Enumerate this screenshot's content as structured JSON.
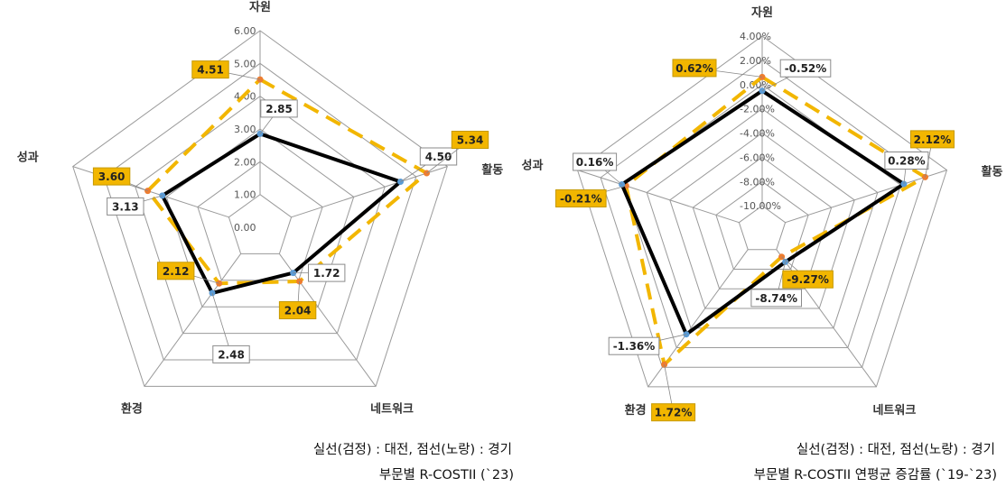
{
  "captions": {
    "left_legend": "실선(검정) : 대전, 점선(노랑) : 경기",
    "left_title": "부문별 R-COSTII (`23)",
    "right_legend": "실선(검정) : 대전, 점선(노랑) : 경기",
    "right_title": "부문별 R-COSTII 연평균 증감률 (`19-`23)"
  },
  "colors": {
    "solid": "#000000",
    "dashed": "#f2b600",
    "label_fill": "#f2b600",
    "grid": "#9a9a9a",
    "blue_marker": "#5b9bd5",
    "orange_marker": "#ed7d31"
  },
  "chart_data": [
    {
      "type": "radar",
      "axes": [
        "자원",
        "활동",
        "네트워크",
        "환경",
        "성과"
      ],
      "rmin": 0,
      "rmax": 6,
      "tick_step": 1,
      "ticks": [
        "0.00",
        "1.00",
        "2.00",
        "3.00",
        "4.00",
        "5.00",
        "6.00"
      ],
      "series": [
        {
          "style": "solid",
          "values": [
            2.85,
            4.5,
            1.72,
            2.48,
            3.13
          ],
          "labels": [
            "2.85",
            "4.50",
            "1.72",
            "2.48",
            "3.13"
          ]
        },
        {
          "style": "dashed",
          "values": [
            4.51,
            5.34,
            2.04,
            2.12,
            3.6
          ],
          "labels": [
            "4.51",
            "5.34",
            "2.04",
            "2.12",
            "3.60"
          ]
        }
      ]
    },
    {
      "type": "radar",
      "axes": [
        "자원",
        "활동",
        "네트워크",
        "환경",
        "성과"
      ],
      "rmin": -12,
      "rmax": 4,
      "tick_step": 2,
      "ticks": [
        "-10.00%",
        "-8.00%",
        "-6.00%",
        "-4.00%",
        "-2.00%",
        "0.00%",
        "2.00%",
        "4.00%"
      ],
      "series": [
        {
          "style": "solid",
          "values": [
            -0.52,
            0.28,
            -8.74,
            -1.36,
            0.16
          ],
          "labels": [
            "-0.52%",
            "0.28%",
            "-8.74%",
            "-1.36%",
            "0.16%"
          ]
        },
        {
          "style": "dashed",
          "values": [
            0.62,
            2.12,
            -9.27,
            1.72,
            -0.21
          ],
          "labels": [
            "0.62%",
            "2.12%",
            "-9.27%",
            "1.72%",
            "-0.21%"
          ]
        }
      ]
    }
  ]
}
